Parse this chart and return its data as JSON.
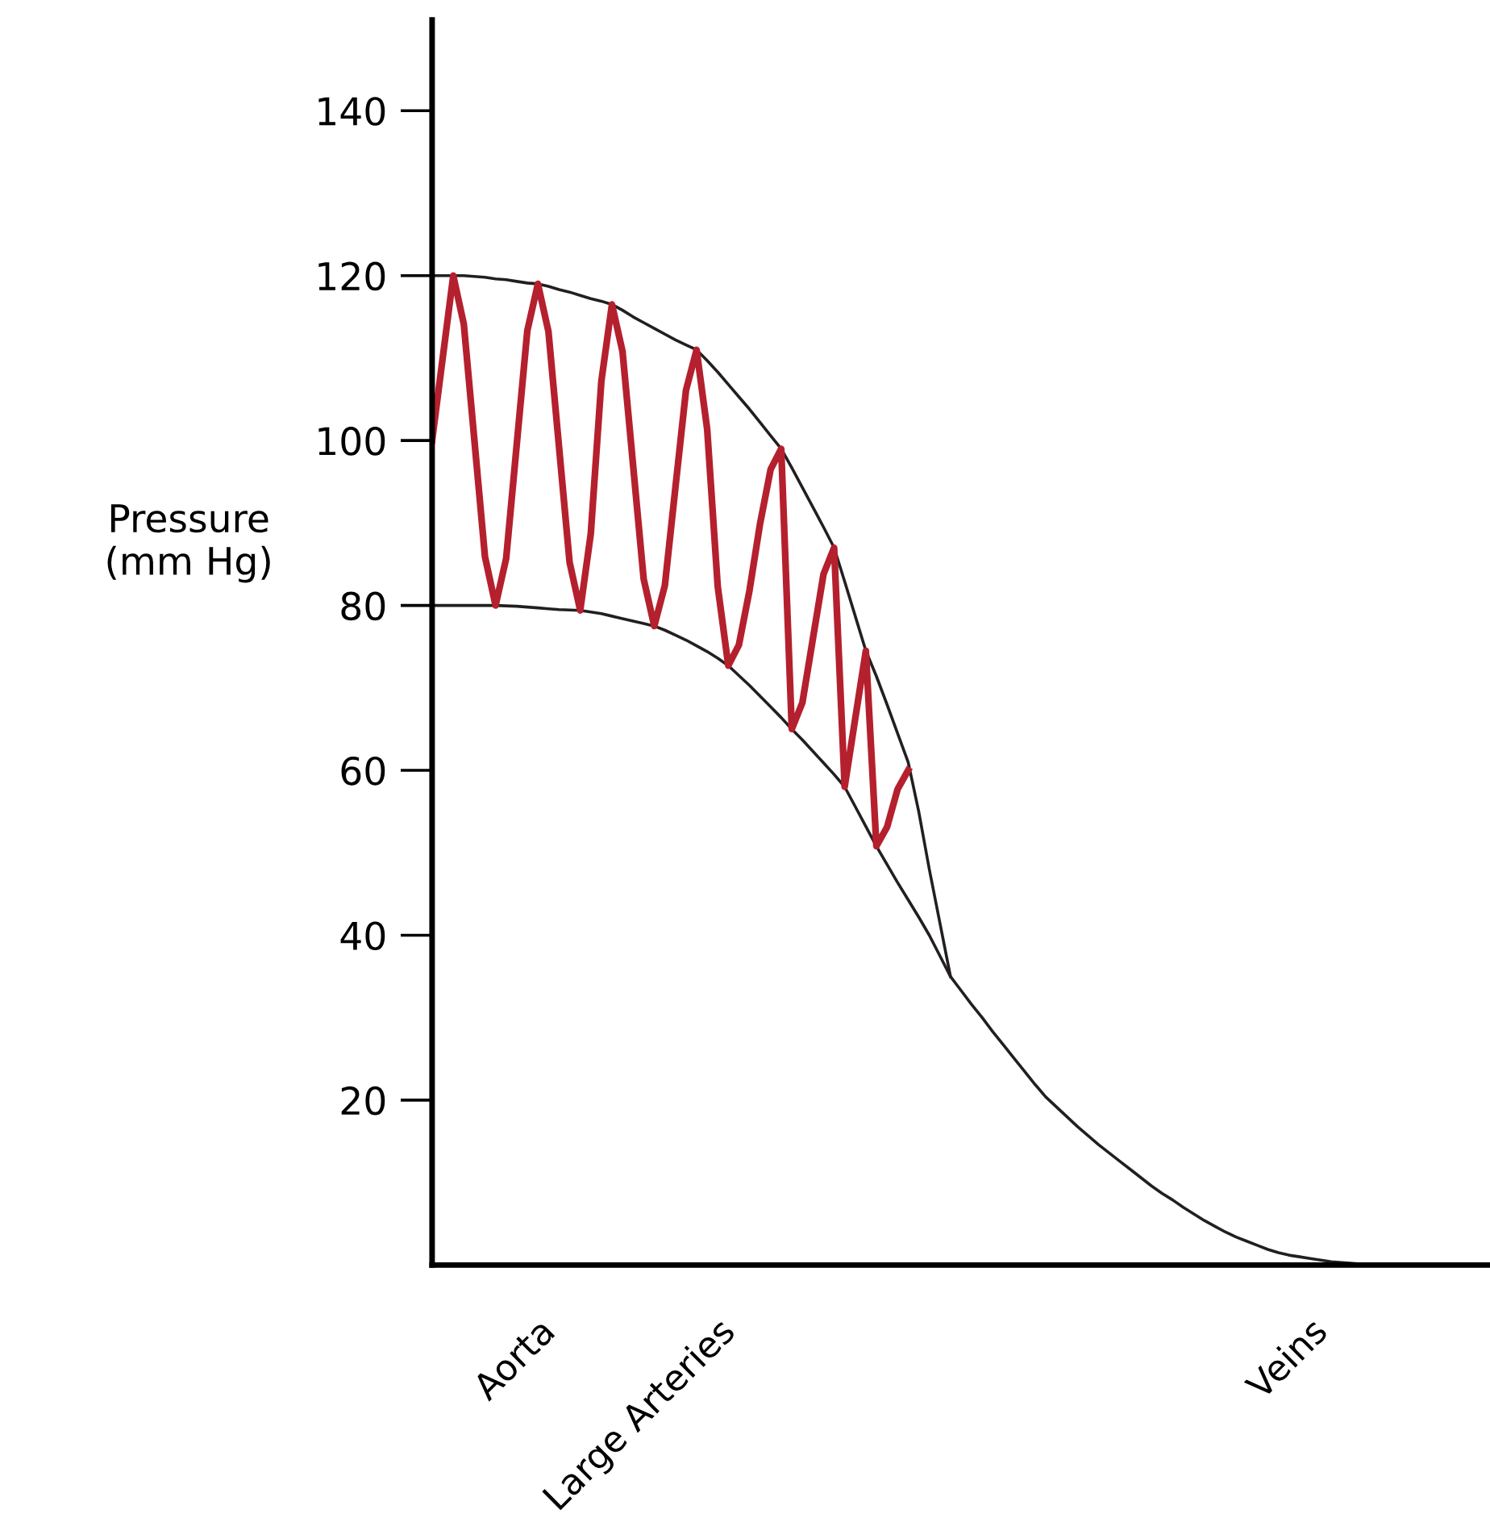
{
  "chart_data": {
    "type": "line",
    "ylabel": "Pressure\n(mm Hg)",
    "ylim": [
      0,
      151
    ],
    "categories": [
      null,
      null,
      null,
      null,
      null,
      null,
      null,
      null,
      null,
      null,
      "Aorta",
      null,
      null,
      null,
      null,
      null,
      null,
      null,
      null,
      null,
      null,
      null,
      null,
      null,
      null,
      null,
      null,
      "Large Arteries",
      null,
      null,
      null,
      null,
      null,
      null,
      null,
      null,
      null,
      null,
      null,
      null,
      null,
      null,
      null,
      null,
      null,
      null,
      null,
      null,
      null,
      null,
      null,
      null,
      null,
      null,
      null,
      null,
      null,
      null,
      null,
      null,
      null,
      null,
      null,
      null,
      null,
      null,
      null,
      null,
      null,
      null,
      null,
      null,
      null,
      null,
      null,
      null,
      null,
      null,
      null,
      null,
      null,
      null,
      null,
      "Veins",
      null,
      null,
      null,
      null,
      null,
      null,
      null,
      null,
      null,
      null,
      null,
      null,
      null,
      null,
      null,
      null,
      null
    ],
    "yticks": [
      20,
      40,
      60,
      80,
      100,
      120,
      140
    ],
    "grid": false,
    "legend": false,
    "marker": "none",
    "line_style": "solid",
    "series": [
      {
        "color": "#231f20",
        "values": [
          120,
          120,
          120,
          120,
          119.9,
          119.8,
          119.6,
          119.5,
          119.3,
          119.1,
          119,
          118.7,
          118.3,
          118,
          117.6,
          117.2,
          116.9,
          116.5,
          115.8,
          115,
          114.3,
          113.6,
          112.9,
          112.2,
          111.6,
          111,
          109.7,
          108.3,
          106.8,
          105.3,
          103.8,
          102.2,
          100.6,
          99,
          96.7,
          94.3,
          91.9,
          89.5,
          87,
          82.9,
          78.7,
          74.5,
          71.4,
          68,
          64.5,
          61,
          55,
          48,
          41.5,
          35,
          null,
          null,
          null,
          null,
          null,
          null,
          null,
          null,
          null,
          null,
          null,
          null,
          null,
          null,
          null,
          null,
          null,
          null,
          null,
          null,
          null,
          null,
          null,
          null,
          null,
          null,
          null,
          null,
          null,
          null,
          null,
          null,
          null,
          null,
          null,
          null,
          null,
          null,
          null,
          null,
          null,
          null,
          null,
          null,
          null,
          null,
          null,
          null,
          null,
          null,
          null
        ]
      },
      {
        "color": "#231f20",
        "values": [
          80,
          80,
          80,
          80,
          80,
          80,
          80,
          79.95,
          79.9,
          79.8,
          79.7,
          79.6,
          79.5,
          79.45,
          79.4,
          79.2,
          79,
          78.7,
          78.4,
          78.1,
          77.8,
          77.5,
          77,
          76.4,
          75.8,
          75.1,
          74.4,
          73.6,
          72.7,
          71.5,
          70.3,
          69,
          67.7,
          66.4,
          65,
          63.7,
          62.3,
          60.9,
          59.5,
          58,
          55.6,
          53.2,
          50.8,
          48.6,
          46.4,
          44.3,
          42.2,
          40,
          37.5,
          35,
          33.3,
          31.6,
          30,
          28.3,
          26.7,
          25.1,
          23.5,
          21.9,
          20.4,
          19.2,
          18,
          16.8,
          15.7,
          14.6,
          13.6,
          12.6,
          11.6,
          10.6,
          9.6,
          8.7,
          7.9,
          7,
          6.2,
          5.4,
          4.7,
          4,
          3.4,
          2.9,
          2.4,
          1.9,
          1.5,
          1.2,
          1,
          0.8,
          0.6,
          0.4,
          0.3,
          0.2,
          0.1,
          0.05,
          0,
          null,
          null,
          null,
          null,
          null,
          null,
          null,
          null,
          null,
          null
        ]
      },
      {
        "color": "#b5202e",
        "values": [
          100,
          110,
          120,
          114.1,
          100,
          85.9,
          80,
          85.7,
          99.5,
          113.3,
          119,
          113.2,
          99.2,
          85.2,
          79.4,
          88.7,
          107.2,
          116.5,
          110.8,
          97,
          83.2,
          77.5,
          82.4,
          94.3,
          106.1,
          111,
          101.4,
          82.3,
          72.7,
          75.2,
          81.8,
          89.9,
          96.5,
          99,
          65,
          68.2,
          76,
          83.8,
          87,
          58,
          66.3,
          74.5,
          50.8,
          53.1,
          57.7,
          60,
          null,
          null,
          null,
          null,
          null,
          null,
          null,
          null,
          null,
          null,
          null,
          null,
          null,
          null,
          null,
          null,
          null,
          null,
          null,
          null,
          null,
          null,
          null,
          null,
          null,
          null,
          null,
          null,
          null,
          null,
          null,
          null,
          null,
          null,
          null,
          null,
          null,
          null,
          null,
          null,
          null,
          null,
          null,
          null,
          null,
          null,
          null,
          null,
          null,
          null,
          null,
          null,
          null,
          null,
          null
        ]
      }
    ]
  }
}
